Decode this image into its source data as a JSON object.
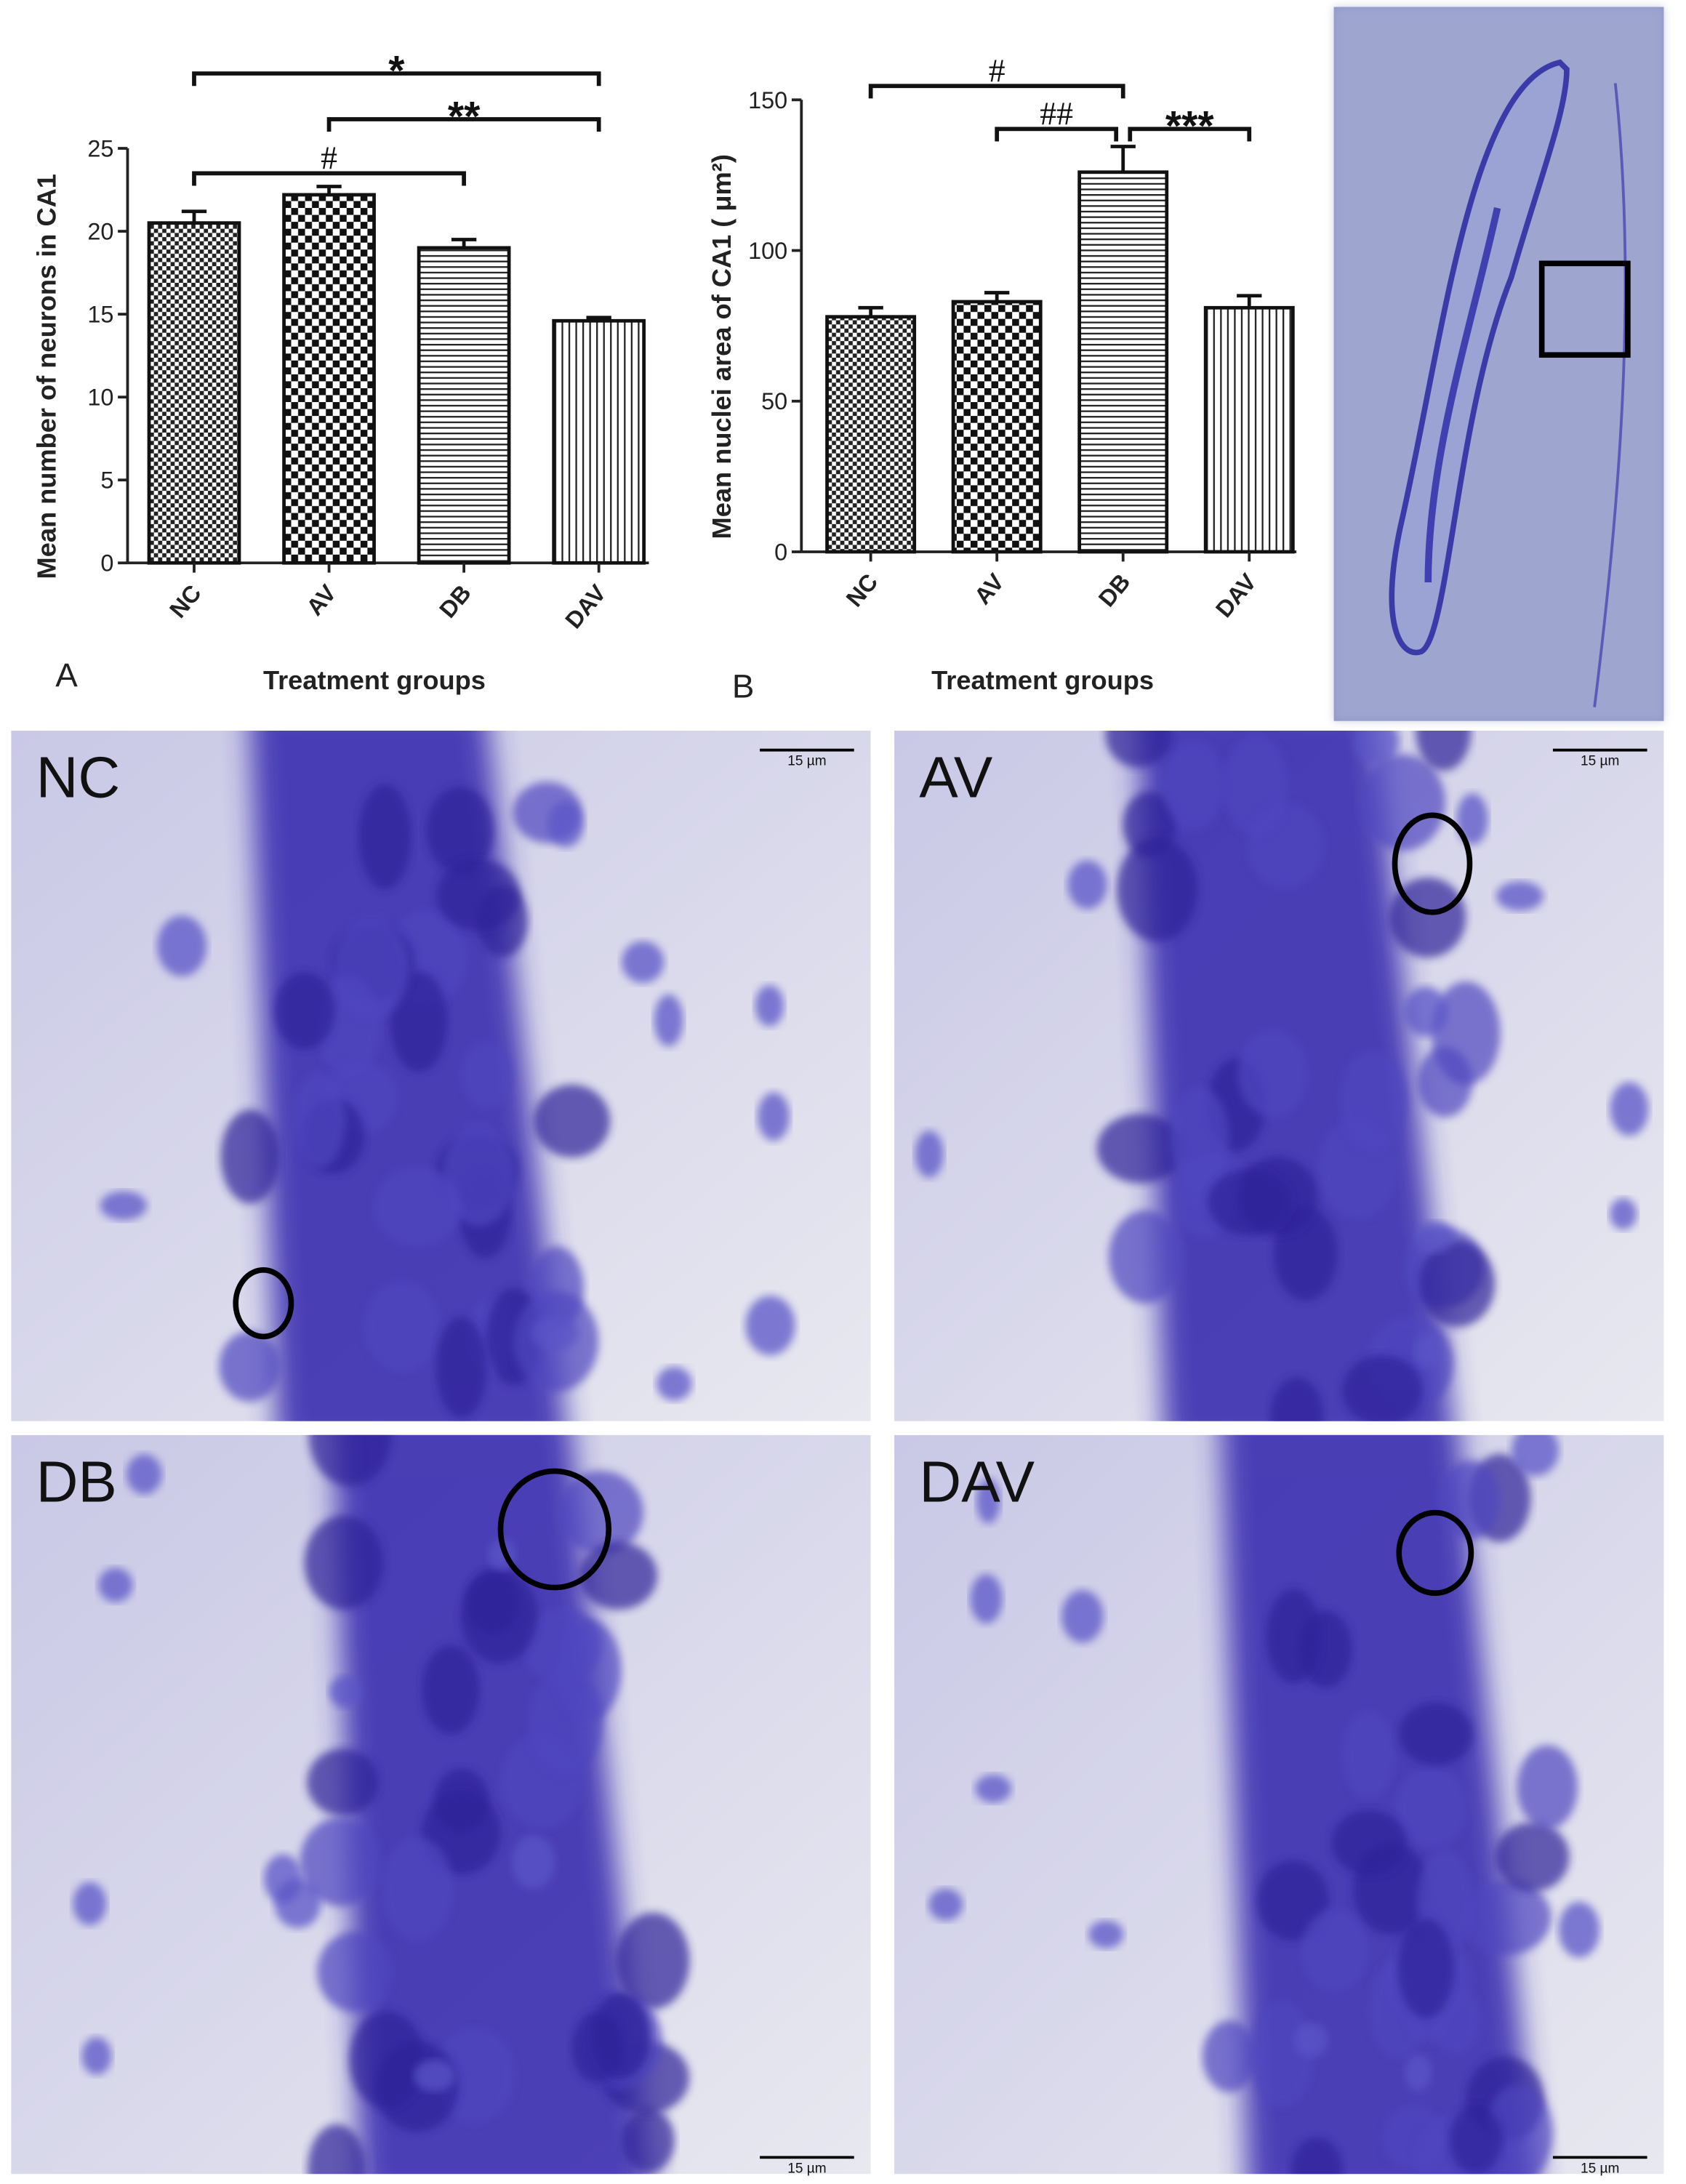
{
  "chart_data": [
    {
      "type": "bar",
      "panel_label": "A",
      "ylabel": "Mean number of neurons in CA1",
      "xlabel": "Treatment groups",
      "categories": [
        "NC",
        "AV",
        "DB",
        "DAV"
      ],
      "values": [
        20.5,
        22.2,
        19.0,
        14.6
      ],
      "errors": [
        0.7,
        0.5,
        0.5,
        0.2
      ],
      "patterns": [
        "fine-checker",
        "coarse-checker",
        "horizontal",
        "vertical"
      ],
      "ylim": [
        0,
        25
      ],
      "yticks": [
        0,
        5,
        10,
        15,
        20,
        25
      ],
      "annotations": [
        {
          "text": "*",
          "from": 0,
          "to": 3
        },
        {
          "text": "**",
          "from": 1,
          "to": 3
        },
        {
          "text": "#",
          "from": 0,
          "to": 2
        }
      ]
    },
    {
      "type": "bar",
      "panel_label": "B",
      "ylabel": "Mean nuclei area of CA1 ( μm²)",
      "xlabel": "Treatment groups",
      "categories": [
        "NC",
        "AV",
        "DB",
        "DAV"
      ],
      "values": [
        78,
        83,
        126,
        81
      ],
      "errors": [
        3,
        3,
        8.5,
        4
      ],
      "patterns": [
        "fine-checker",
        "coarse-checker",
        "horizontal",
        "vertical"
      ],
      "ylim": [
        0,
        150
      ],
      "yticks": [
        0,
        50,
        100,
        150
      ],
      "annotations": [
        {
          "text": "#",
          "from": 0,
          "to": 2
        },
        {
          "text": "##",
          "from": 1,
          "to": 2
        },
        {
          "text": "***",
          "from": 2,
          "to": 3
        }
      ]
    }
  ],
  "micrographs": [
    {
      "label": "NC",
      "scale_bar": "15 µm"
    },
    {
      "label": "AV",
      "scale_bar": "15 µm"
    },
    {
      "label": "DB",
      "scale_bar": "15 µm"
    },
    {
      "label": "DAV",
      "scale_bar": "15 µm"
    }
  ]
}
